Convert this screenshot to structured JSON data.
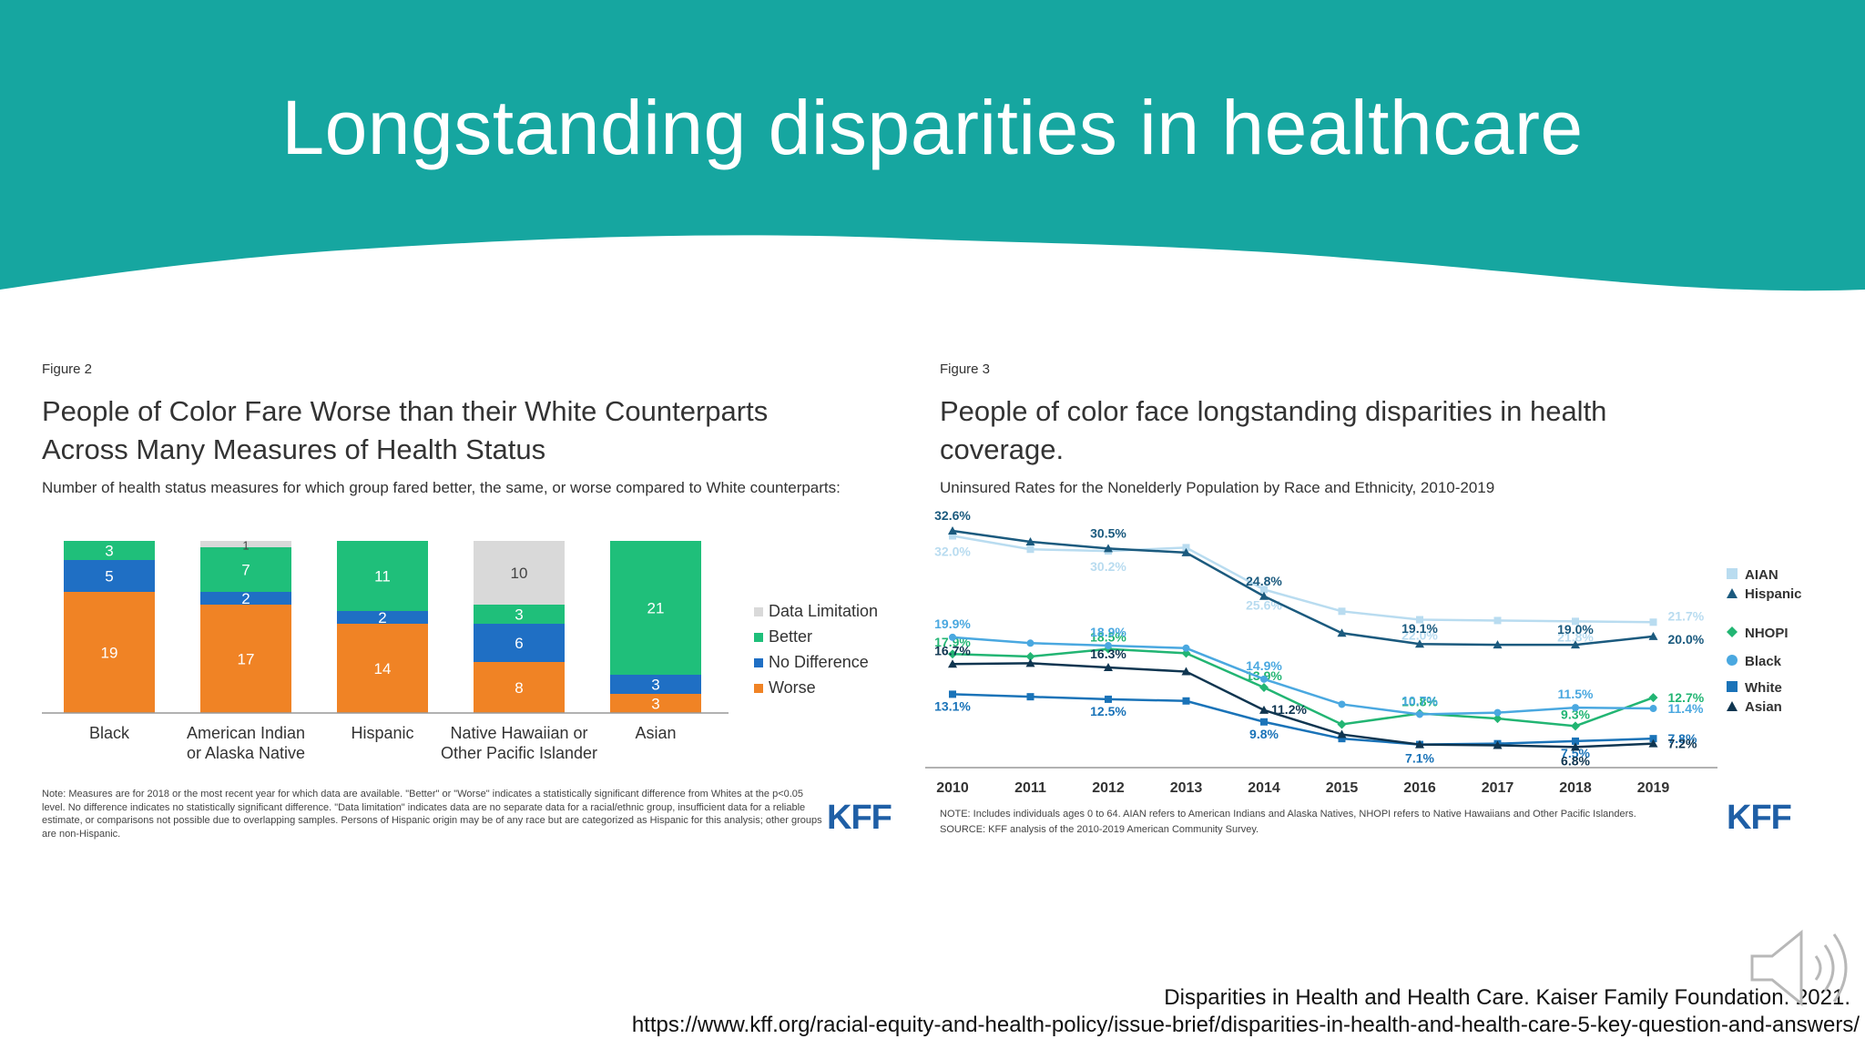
{
  "slide": {
    "title": "Longstanding disparities in healthcare",
    "header_color": "#16a6a0",
    "citation_line1": "Disparities in Health and Health Care. Kaiser Family Foundation. 2021.",
    "citation_line2": "https://www.kff.org/racial-equity-and-health-policy/issue-brief/disparities-in-health-and-health-care-5-key-question-and-answers/"
  },
  "fig2": {
    "label": "Figure 2",
    "title_line1": "People of Color Fare Worse than their White Counterparts",
    "title_line2": "Across Many Measures of Health Status",
    "subtitle": "Number of health status measures for which group fared better, the same, or worse compared to White counterparts:",
    "note": "Note: Measures are for 2018 or the most recent year for which data are available. \"Better\" or \"Worse\" indicates a statistically significant difference from Whites at the p<0.05 level. No difference indicates no statistically significant difference. \"Data limitation\" indicates data are no separate data for a racial/ethnic group, insufficient data for a reliable estimate, or comparisons not possible due to overlapping samples. Persons of Hispanic origin may be of any race but are categorized as Hispanic for this analysis; other groups are non-Hispanic.",
    "logo": "KFF"
  },
  "fig3": {
    "label": "Figure 3",
    "title_line1": "People of color face longstanding disparities in health",
    "title_line2": "coverage.",
    "subtitle": "Uninsured Rates for the Nonelderly Population by Race and Ethnicity, 2010-2019",
    "note_line1": "NOTE: Includes individuals ages 0 to 64. AIAN refers to American Indians and Alaska Natives, NHOPI refers to Native Hawaiians and Other Pacific Islanders.",
    "note_line2": "SOURCE: KFF analysis of the 2010-2019 American Community Survey.",
    "logo": "KFF"
  },
  "colors": {
    "data_limitation": "#d9d9d9",
    "better": "#1fbf7a",
    "no_difference": "#1f6fc4",
    "worse": "#f08325",
    "aian": "#b9dcf0",
    "hispanic": "#1b5a7e",
    "nhopi": "#22b573",
    "black": "#4aa8e0",
    "white": "#1a73b8",
    "asian": "#0f3550"
  },
  "chart_data": [
    {
      "type": "bar",
      "stacked": true,
      "categories": [
        "Black",
        "American Indian\nor Alaska Native",
        "Hispanic",
        "Native Hawaiian or\nOther Pacific Islander",
        "Asian"
      ],
      "series": [
        {
          "name": "Worse",
          "values": [
            19,
            17,
            14,
            8,
            3
          ]
        },
        {
          "name": "No Difference",
          "values": [
            5,
            2,
            2,
            6,
            3
          ]
        },
        {
          "name": "Better",
          "values": [
            3,
            7,
            11,
            3,
            21
          ]
        },
        {
          "name": "Data Limitation",
          "values": [
            0,
            1,
            0,
            10,
            0
          ]
        }
      ],
      "legend": [
        "Data Limitation",
        "Better",
        "No Difference",
        "Worse"
      ],
      "legend_position": "right"
    },
    {
      "type": "line",
      "x": [
        2010,
        2011,
        2012,
        2013,
        2014,
        2015,
        2016,
        2017,
        2018,
        2019
      ],
      "series": [
        {
          "name": "AIAN",
          "values": [
            32.0,
            30.4,
            30.2,
            30.6,
            25.6,
            23.0,
            22.0,
            21.9,
            21.8,
            21.7
          ],
          "labels": {
            "2010": "32.0%",
            "2012": "30.2%",
            "2014": "25.6%",
            "2016": "22.0%",
            "2018": "21.8%",
            "2019": "21.7%"
          }
        },
        {
          "name": "Hispanic",
          "values": [
            32.6,
            31.3,
            30.5,
            30.0,
            24.8,
            20.4,
            19.1,
            19.0,
            19.0,
            20.0
          ],
          "labels": {
            "2010": "32.6%",
            "2012": "30.5%",
            "2014": "24.8%",
            "2016": "19.1%",
            "2018": "19.0%",
            "2019": "20.0%"
          }
        },
        {
          "name": "NHOPI",
          "values": [
            17.9,
            17.6,
            18.5,
            18.0,
            13.9,
            9.5,
            10.8,
            10.2,
            9.3,
            12.7
          ],
          "labels": {
            "2010": "17.9%",
            "2012": "18.5%",
            "2014": "13.9%",
            "2016": "10.8%",
            "2018": "9.3%",
            "2019": "12.7%"
          }
        },
        {
          "name": "Black",
          "values": [
            19.9,
            19.2,
            18.9,
            18.6,
            14.9,
            11.9,
            10.7,
            10.9,
            11.5,
            11.4
          ],
          "labels": {
            "2010": "19.9%",
            "2012": "18.9%",
            "2014": "14.9%",
            "2016": "10.7%",
            "2018": "11.5%",
            "2019": "11.4%"
          }
        },
        {
          "name": "White",
          "values": [
            13.1,
            12.8,
            12.5,
            12.3,
            9.8,
            7.8,
            7.1,
            7.2,
            7.5,
            7.8
          ],
          "labels": {
            "2010": "13.1%",
            "2012": "12.5%",
            "2014": "9.8%",
            "2016": "7.1%",
            "2018": "7.5%",
            "2019": "7.8%"
          }
        },
        {
          "name": "Asian",
          "values": [
            16.7,
            16.8,
            16.3,
            15.8,
            11.2,
            8.3,
            7.1,
            7.0,
            6.8,
            7.2
          ],
          "labels": {
            "2014": "11.2%",
            "2010": "16.7%",
            "2012": "16.3%",
            "2018": "6.8%",
            "2019": "7.2%"
          }
        }
      ],
      "ylim": [
        5,
        34
      ],
      "legend_position": "right"
    }
  ]
}
